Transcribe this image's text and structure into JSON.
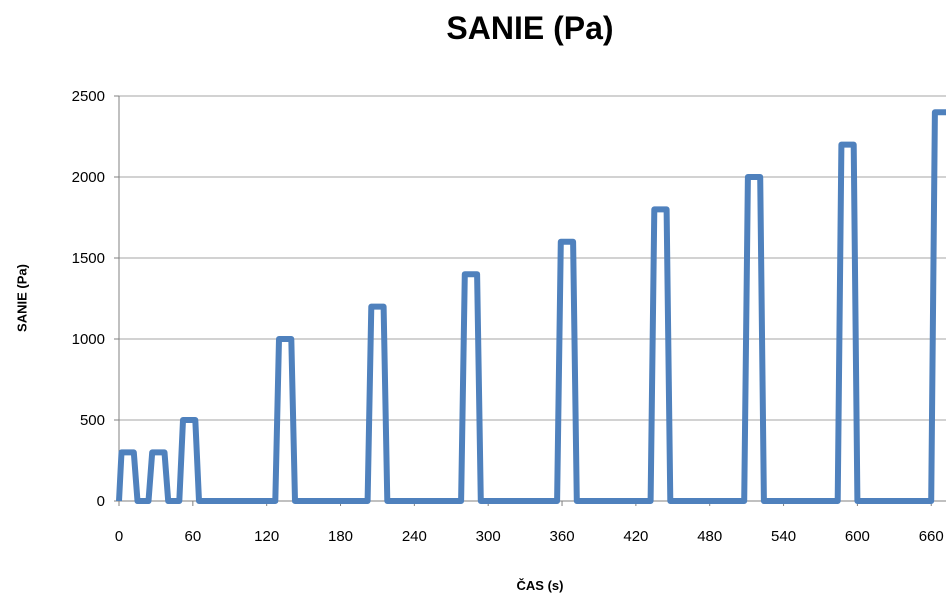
{
  "chart_data": {
    "type": "line",
    "title": "SANIE (Pa)",
    "xlabel": "ČAS (s)",
    "ylabel": "SANIE (Pa)",
    "xlim": [
      0,
      672
    ],
    "ylim": [
      0,
      2500
    ],
    "x_ticks": [
      0,
      60,
      120,
      180,
      240,
      300,
      360,
      420,
      480,
      540,
      600,
      660
    ],
    "y_ticks": [
      0,
      500,
      1000,
      1500,
      2000,
      2500
    ],
    "grid": "horizontal",
    "legend": "none",
    "color": "#4f81bd",
    "series": [
      {
        "x": [
          0,
          2,
          12,
          15,
          24,
          27,
          37,
          40,
          49,
          52,
          62,
          65,
          74,
          127,
          130,
          140,
          143,
          202,
          205,
          215,
          218,
          278,
          281,
          291,
          294,
          356,
          359,
          369,
          372,
          432,
          435,
          445,
          448,
          508,
          511,
          521,
          524,
          584,
          587,
          597,
          600,
          660,
          663,
          672
        ],
        "y": [
          0,
          300,
          300,
          0,
          0,
          300,
          300,
          0,
          0,
          500,
          500,
          0,
          0,
          0,
          1000,
          1000,
          0,
          0,
          1200,
          1200,
          0,
          0,
          1400,
          1400,
          0,
          0,
          1600,
          1600,
          0,
          0,
          1800,
          1800,
          0,
          0,
          2000,
          2000,
          0,
          0,
          2200,
          2200,
          0,
          0,
          2400,
          2400
        ]
      }
    ]
  }
}
